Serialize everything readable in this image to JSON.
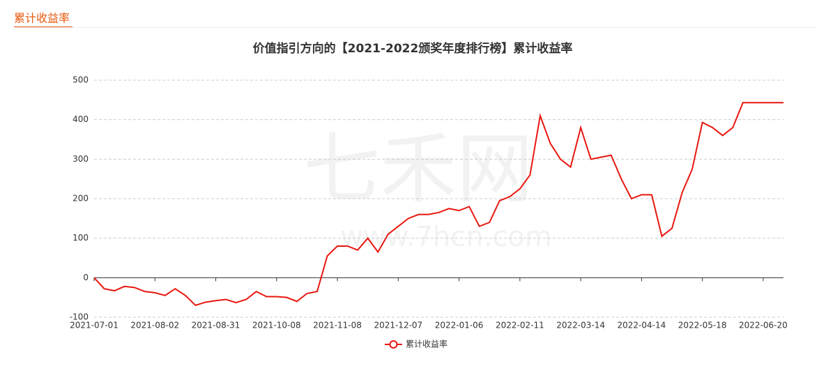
{
  "header": {
    "title": "累计收益率"
  },
  "chart_data": {
    "type": "line",
    "title": "价值指引方向的【2021-2022颁奖年度排行榜】累计收益率",
    "watermark": [
      "七禾网",
      "www.7hcn.com"
    ],
    "categories": [
      "2021-07-01",
      null,
      null,
      null,
      null,
      null,
      "2021-08-02",
      null,
      null,
      null,
      null,
      null,
      "2021-08-31",
      null,
      null,
      null,
      null,
      null,
      "2021-10-08",
      null,
      null,
      null,
      null,
      null,
      "2021-11-08",
      null,
      null,
      null,
      null,
      null,
      "2021-12-07",
      null,
      null,
      null,
      null,
      null,
      "2022-01-06",
      null,
      null,
      null,
      null,
      null,
      "2022-02-11",
      null,
      null,
      null,
      null,
      null,
      "2022-03-14",
      null,
      null,
      null,
      null,
      null,
      "2022-04-14",
      null,
      null,
      null,
      null,
      null,
      "2022-05-18",
      null,
      null,
      null,
      null,
      null,
      "2022-06-20",
      null,
      null
    ],
    "series": [
      {
        "name": "累计收益率",
        "color": "#e8170f",
        "values": [
          0,
          -28,
          -33,
          -22,
          -25,
          -35,
          -38,
          -45,
          -28,
          -45,
          -70,
          -62,
          -58,
          -55,
          -63,
          -55,
          -35,
          -48,
          -48,
          -50,
          -60,
          -40,
          -35,
          55,
          80,
          80,
          70,
          100,
          65,
          110,
          130,
          150,
          160,
          160,
          165,
          175,
          170,
          180,
          130,
          140,
          195,
          205,
          225,
          260,
          410,
          340,
          300,
          280,
          380,
          300,
          305,
          310,
          250,
          200,
          210,
          210,
          105,
          125,
          215,
          275,
          393,
          380,
          360,
          380,
          443,
          443,
          443,
          443,
          443
        ]
      }
    ],
    "ylim": [
      -100,
      500
    ],
    "yticks": [
      -100,
      0,
      100,
      200,
      300,
      400,
      500
    ],
    "grid": true,
    "legend": "bottom"
  }
}
